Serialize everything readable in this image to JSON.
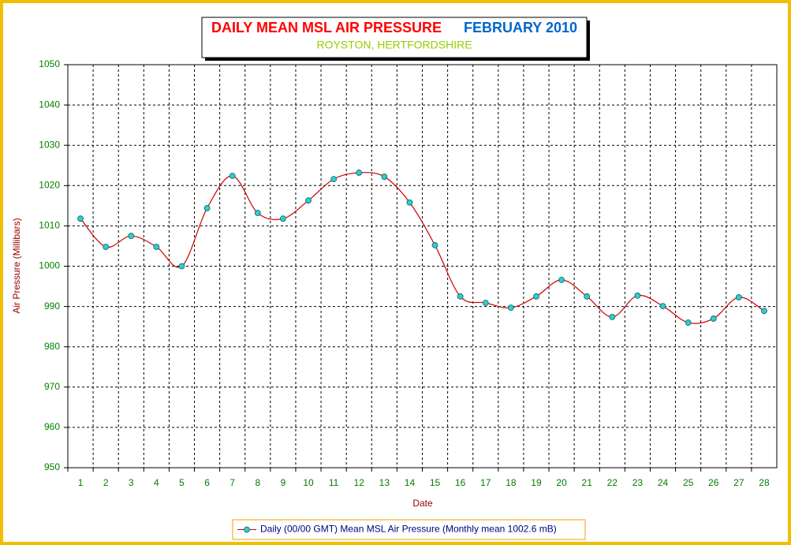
{
  "chart_data": {
    "type": "line",
    "title": "DAILY MEAN MSL AIR PRESSURE",
    "period": "FEBRUARY 2010",
    "subtitle": "ROYSTON, HERTFORDSHIRE",
    "x_label": "Date",
    "y_label": "Air Pressure (Millibars)",
    "categories": [
      "1",
      "2",
      "3",
      "4",
      "5",
      "6",
      "7",
      "8",
      "9",
      "10",
      "11",
      "12",
      "13",
      "14",
      "15",
      "16",
      "17",
      "18",
      "19",
      "20",
      "21",
      "22",
      "23",
      "24",
      "25",
      "26",
      "27",
      "28"
    ],
    "series": [
      {
        "name": "Daily (00/00 GMT) Mean MSL Air Pressure (Monthly mean 1002.6 mB)",
        "color": "#cc0000",
        "marker_color": "#33cccc",
        "smooth": true,
        "values": [
          1011.8,
          1004.8,
          1007.5,
          1004.8,
          1000.0,
          1014.4,
          1022.4,
          1013.2,
          1011.8,
          1016.3,
          1021.6,
          1023.2,
          1022.2,
          1015.8,
          1005.2,
          992.5,
          990.9,
          989.7,
          992.5,
          996.6,
          992.5,
          987.4,
          992.7,
          990.1,
          986.0,
          987.0,
          992.3,
          988.9
        ]
      }
    ],
    "ylim": [
      950,
      1050
    ],
    "yticks": [
      950,
      960,
      970,
      980,
      990,
      1000,
      1010,
      1020,
      1030,
      1040,
      1050
    ],
    "grid": true,
    "legend": "bottom"
  }
}
